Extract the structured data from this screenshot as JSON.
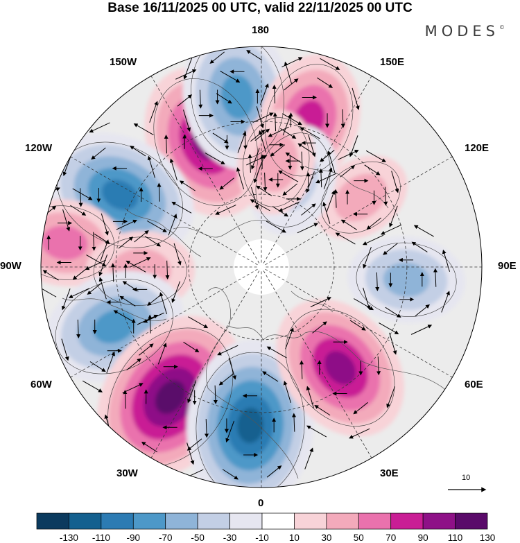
{
  "title": "Base 16/11/2025 00 UTC, valid 22/11/2025 00 UTC",
  "brand": "MODES",
  "brand_mark": "©",
  "longitudes": {
    "l180": "180",
    "l150e": "150E",
    "l120e": "120E",
    "l90e": "90E",
    "l60e": "60E",
    "l30e": "30E",
    "l0": "0",
    "l30w": "30W",
    "l60w": "60W",
    "l90w": "90W",
    "l120w": "120W",
    "l150w": "150W"
  },
  "vector_scale": {
    "label": "10"
  },
  "colorbar": {
    "labels": [
      "-130",
      "-110",
      "-90",
      "-70",
      "-50",
      "-30",
      "-10",
      "10",
      "30",
      "50",
      "70",
      "90",
      "110",
      "130"
    ],
    "colors": [
      "#0b3a5e",
      "#14608f",
      "#2c7bb3",
      "#4d98c8",
      "#8fb4d8",
      "#c3cfe5",
      "#e6e6f0",
      "#ffffff",
      "#f8d3d8",
      "#f3aabb",
      "#ea72ad",
      "#c91e95",
      "#8e1187",
      "#5a0a6a"
    ]
  },
  "anomalies": [
    {
      "name": "pos-150w",
      "lon": -156,
      "r": 0.62,
      "amp": 95
    },
    {
      "name": "neg-170w",
      "lon": -172,
      "r": 0.78,
      "amp": -85
    },
    {
      "name": "pos-170e",
      "lon": 162,
      "r": 0.7,
      "amp": 70
    },
    {
      "name": "neg-115w",
      "lon": -117,
      "r": 0.72,
      "amp": -95
    },
    {
      "name": "pos-95w",
      "lon": -97,
      "r": 0.9,
      "amp": 50
    },
    {
      "name": "pos-90w",
      "lon": -88,
      "r": 0.55,
      "amp": 40
    },
    {
      "name": "neg-65w",
      "lon": -68,
      "r": 0.72,
      "amp": -80
    },
    {
      "name": "pos-35w",
      "lon": -35,
      "r": 0.72,
      "amp": 120
    },
    {
      "name": "neg-5w",
      "lon": -4,
      "r": 0.72,
      "amp": -115
    },
    {
      "name": "pos-40e",
      "lon": 38,
      "r": 0.58,
      "amp": 90
    },
    {
      "name": "neg-90e",
      "lon": 85,
      "r": 0.66,
      "amp": -50
    },
    {
      "name": "pos-125e",
      "lon": 125,
      "r": 0.55,
      "amp": 30
    },
    {
      "name": "neg-165e",
      "lon": 160,
      "r": 0.42,
      "amp": -45
    },
    {
      "name": "pos-175e",
      "lon": 172,
      "r": 0.48,
      "amp": 35
    }
  ]
}
